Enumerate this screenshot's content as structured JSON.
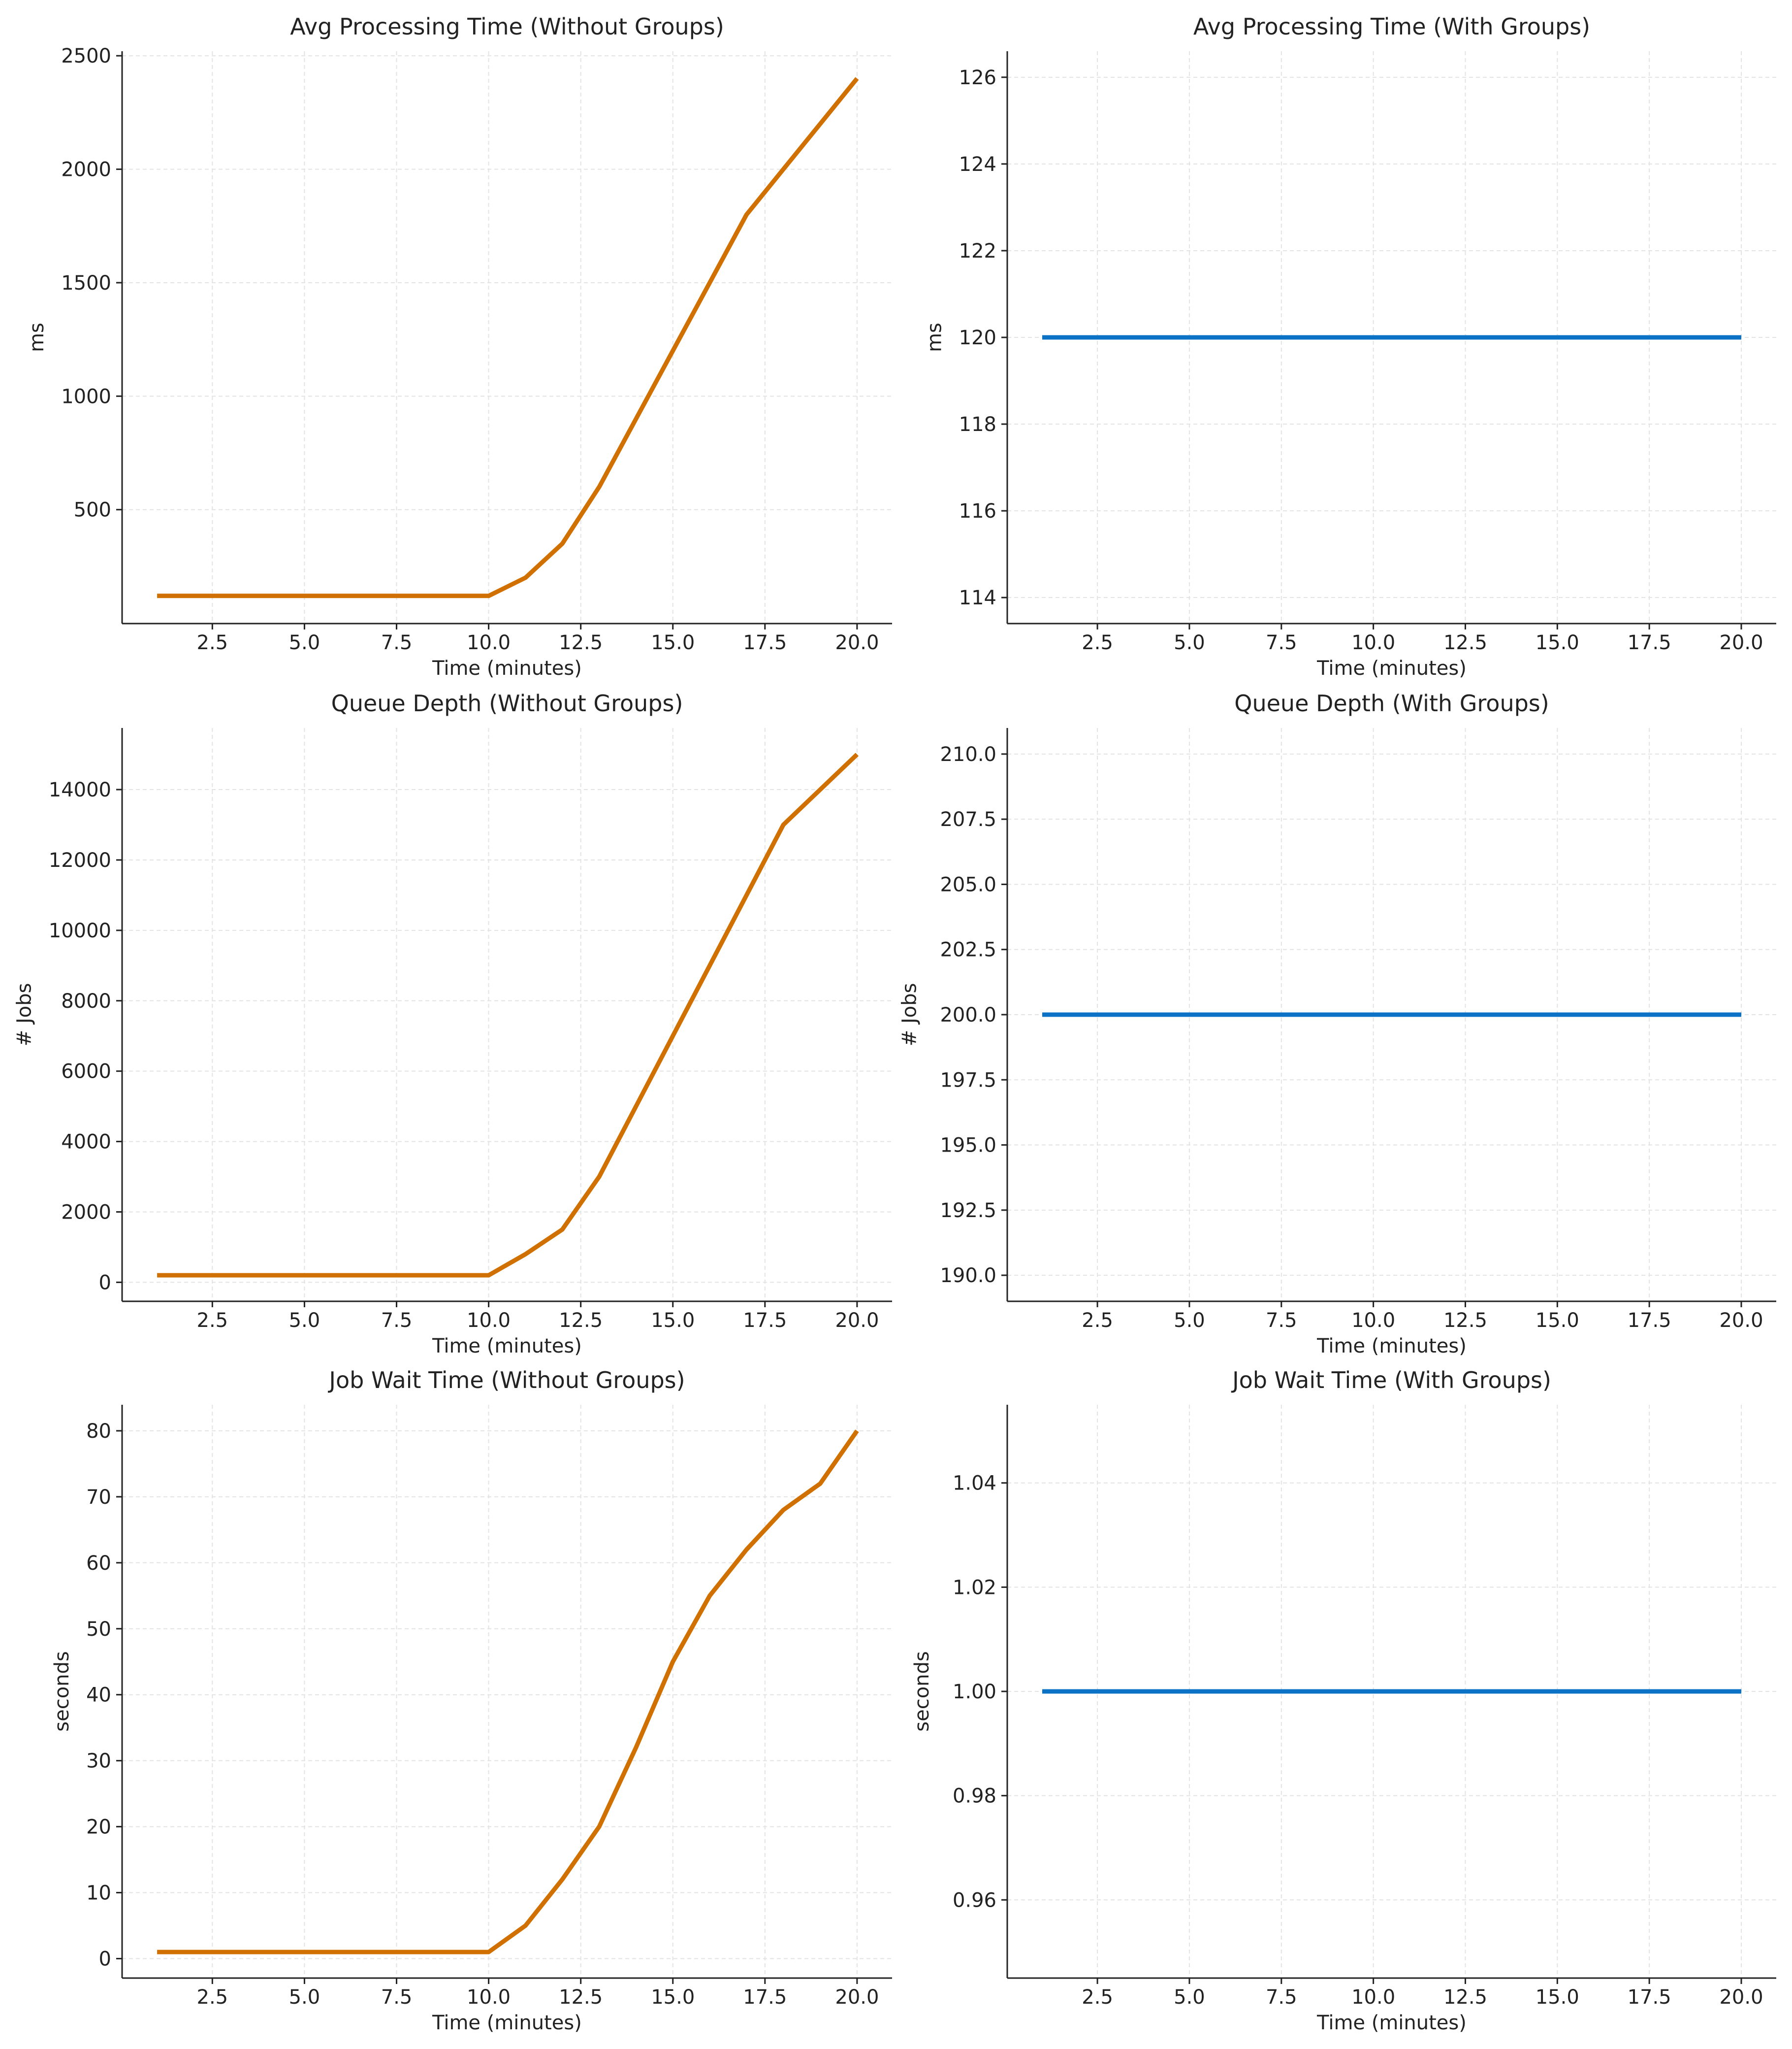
{
  "chart_data": [
    {
      "type": "line",
      "title": "Avg Processing Time (Without Groups)",
      "xlabel": "Time (minutes)",
      "ylabel": "ms",
      "xlim": [
        0.05,
        20.95
      ],
      "ylim": [
        -2,
        2520
      ],
      "xticks": [
        2.5,
        5.0,
        7.5,
        10.0,
        12.5,
        15.0,
        17.5,
        20.0
      ],
      "xticklabels": [
        "2.5",
        "5.0",
        "7.5",
        "10.0",
        "12.5",
        "15.0",
        "17.5",
        "20.0"
      ],
      "yticks": [
        500,
        1000,
        1500,
        2000,
        2500
      ],
      "yticklabels": [
        "500",
        "1000",
        "1500",
        "2000",
        "2500"
      ],
      "grid": true,
      "series": [
        {
          "color": "#d07000",
          "x": [
            1,
            2,
            3,
            4,
            5,
            6,
            7,
            8,
            9,
            10,
            11,
            12,
            13,
            14,
            15,
            16,
            17,
            18,
            19,
            20
          ],
          "y": [
            120,
            120,
            120,
            120,
            120,
            120,
            120,
            120,
            120,
            120,
            200,
            350,
            600,
            900,
            1200,
            1500,
            1800,
            2000,
            2200,
            2400
          ]
        }
      ]
    },
    {
      "type": "line",
      "title": "Avg Processing Time (With Groups)",
      "xlabel": "Time (minutes)",
      "ylabel": "ms",
      "xlim": [
        0.05,
        20.95
      ],
      "ylim": [
        113.4,
        126.6
      ],
      "xticks": [
        2.5,
        5.0,
        7.5,
        10.0,
        12.5,
        15.0,
        17.5,
        20.0
      ],
      "xticklabels": [
        "2.5",
        "5.0",
        "7.5",
        "10.0",
        "12.5",
        "15.0",
        "17.5",
        "20.0"
      ],
      "yticks": [
        114,
        116,
        118,
        120,
        122,
        124,
        126
      ],
      "yticklabels": [
        "114",
        "116",
        "118",
        "120",
        "122",
        "124",
        "126"
      ],
      "grid": true,
      "series": [
        {
          "color": "#0b72c5",
          "x": [
            1,
            2,
            3,
            4,
            5,
            6,
            7,
            8,
            9,
            10,
            11,
            12,
            13,
            14,
            15,
            16,
            17,
            18,
            19,
            20
          ],
          "y": [
            120,
            120,
            120,
            120,
            120,
            120,
            120,
            120,
            120,
            120,
            120,
            120,
            120,
            120,
            120,
            120,
            120,
            120,
            120,
            120
          ]
        }
      ]
    },
    {
      "type": "line",
      "title": "Queue Depth (Without Groups)",
      "xlabel": "Time (minutes)",
      "ylabel": "# Jobs",
      "xlim": [
        0.05,
        20.95
      ],
      "ylim": [
        -540,
        15750
      ],
      "xticks": [
        2.5,
        5.0,
        7.5,
        10.0,
        12.5,
        15.0,
        17.5,
        20.0
      ],
      "xticklabels": [
        "2.5",
        "5.0",
        "7.5",
        "10.0",
        "12.5",
        "15.0",
        "17.5",
        "20.0"
      ],
      "yticks": [
        0,
        2000,
        4000,
        6000,
        8000,
        10000,
        12000,
        14000
      ],
      "yticklabels": [
        "0",
        "2000",
        "4000",
        "6000",
        "8000",
        "10000",
        "12000",
        "14000"
      ],
      "grid": true,
      "series": [
        {
          "color": "#d07000",
          "x": [
            1,
            2,
            3,
            4,
            5,
            6,
            7,
            8,
            9,
            10,
            11,
            12,
            13,
            14,
            15,
            16,
            17,
            18,
            19,
            20
          ],
          "y": [
            200,
            200,
            200,
            200,
            200,
            200,
            200,
            200,
            200,
            200,
            800,
            1500,
            3000,
            5000,
            7000,
            9000,
            11000,
            13000,
            14000,
            15000
          ]
        }
      ]
    },
    {
      "type": "line",
      "title": "Queue Depth (With Groups)",
      "xlabel": "Time (minutes)",
      "ylabel": "# Jobs",
      "xlim": [
        0.05,
        20.95
      ],
      "ylim": [
        189,
        211
      ],
      "xticks": [
        2.5,
        5.0,
        7.5,
        10.0,
        12.5,
        15.0,
        17.5,
        20.0
      ],
      "xticklabels": [
        "2.5",
        "5.0",
        "7.5",
        "10.0",
        "12.5",
        "15.0",
        "17.5",
        "20.0"
      ],
      "yticks": [
        190.0,
        192.5,
        195.0,
        197.5,
        200.0,
        202.5,
        205.0,
        207.5,
        210.0
      ],
      "yticklabels": [
        "190.0",
        "192.5",
        "195.0",
        "197.5",
        "200.0",
        "202.5",
        "205.0",
        "207.5",
        "210.0"
      ],
      "grid": true,
      "series": [
        {
          "color": "#0b72c5",
          "x": [
            1,
            2,
            3,
            4,
            5,
            6,
            7,
            8,
            9,
            10,
            11,
            12,
            13,
            14,
            15,
            16,
            17,
            18,
            19,
            20
          ],
          "y": [
            200,
            200,
            200,
            200,
            200,
            200,
            200,
            200,
            200,
            200,
            200,
            200,
            200,
            200,
            200,
            200,
            200,
            200,
            200,
            200
          ]
        }
      ]
    },
    {
      "type": "line",
      "title": "Job Wait Time (Without Groups)",
      "xlabel": "Time (minutes)",
      "ylabel": "seconds",
      "xlim": [
        0.05,
        20.95
      ],
      "ylim": [
        -2.95,
        83.95
      ],
      "xticks": [
        2.5,
        5.0,
        7.5,
        10.0,
        12.5,
        15.0,
        17.5,
        20.0
      ],
      "xticklabels": [
        "2.5",
        "5.0",
        "7.5",
        "10.0",
        "12.5",
        "15.0",
        "17.5",
        "20.0"
      ],
      "yticks": [
        0,
        10,
        20,
        30,
        40,
        50,
        60,
        70,
        80
      ],
      "yticklabels": [
        "0",
        "10",
        "20",
        "30",
        "40",
        "50",
        "60",
        "70",
        "80"
      ],
      "grid": true,
      "series": [
        {
          "color": "#d07000",
          "x": [
            1,
            2,
            3,
            4,
            5,
            6,
            7,
            8,
            9,
            10,
            11,
            12,
            13,
            14,
            15,
            16,
            17,
            18,
            19,
            20
          ],
          "y": [
            1,
            1,
            1,
            1,
            1,
            1,
            1,
            1,
            1,
            1,
            5,
            12,
            20,
            32,
            45,
            55,
            62,
            68,
            72,
            80
          ]
        }
      ]
    },
    {
      "type": "line",
      "title": "Job Wait Time (With Groups)",
      "xlabel": "Time (minutes)",
      "ylabel": "seconds",
      "xlim": [
        0.05,
        20.95
      ],
      "ylim": [
        0.945,
        1.055
      ],
      "xticks": [
        2.5,
        5.0,
        7.5,
        10.0,
        12.5,
        15.0,
        17.5,
        20.0
      ],
      "xticklabels": [
        "2.5",
        "5.0",
        "7.5",
        "10.0",
        "12.5",
        "15.0",
        "17.5",
        "20.0"
      ],
      "yticks": [
        0.96,
        0.98,
        1.0,
        1.02,
        1.04
      ],
      "yticklabels": [
        "0.96",
        "0.98",
        "1.00",
        "1.02",
        "1.04"
      ],
      "grid": true,
      "series": [
        {
          "color": "#0b72c5",
          "x": [
            1,
            2,
            3,
            4,
            5,
            6,
            7,
            8,
            9,
            10,
            11,
            12,
            13,
            14,
            15,
            16,
            17,
            18,
            19,
            20
          ],
          "y": [
            1,
            1,
            1,
            1,
            1,
            1,
            1,
            1,
            1,
            1,
            1,
            1,
            1,
            1,
            1,
            1,
            1,
            1,
            1,
            1
          ]
        }
      ]
    }
  ]
}
